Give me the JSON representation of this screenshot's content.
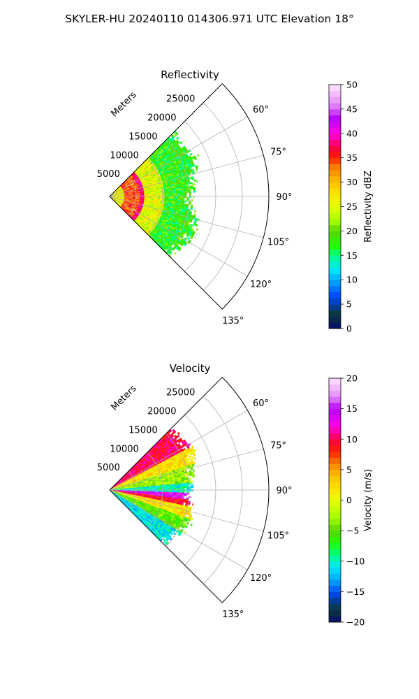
{
  "figure": {
    "suptitle": "SKYLER-HU  20240110  014306.971 UTC Elevation 18°"
  },
  "chart_data": [
    {
      "type": "heatmap",
      "projection": "polar-sector",
      "title": "Reflectivity",
      "radial_axis_label": "Meters",
      "radial_ticks": [
        5000,
        10000,
        15000,
        20000,
        25000
      ],
      "radial_tick_labels": [
        "5000",
        "10000",
        "15000",
        "20000",
        "25000"
      ],
      "rlim": [
        0,
        30000
      ],
      "azimuth_range_deg": [
        45,
        135
      ],
      "azimuth_ticks": [
        60,
        75,
        90,
        105,
        120,
        135
      ],
      "azimuth_tick_labels": [
        "60°",
        "75°",
        "90°",
        "105°",
        "120°",
        "135°"
      ],
      "grid": true,
      "colorbar": {
        "label": "Reflectivity dBZ",
        "vmin": 0,
        "vmax": 50,
        "ticks": [
          0,
          5,
          10,
          15,
          20,
          25,
          30,
          35,
          40,
          45,
          50
        ],
        "tick_labels": [
          "0",
          "5",
          "10",
          "15",
          "20",
          "25",
          "30",
          "35",
          "40",
          "45",
          "50"
        ],
        "stops": [
          {
            "v": 0,
            "c": "#0a0a6e"
          },
          {
            "v": 3,
            "c": "#0a3a3a"
          },
          {
            "v": 5,
            "c": "#003cb4"
          },
          {
            "v": 7,
            "c": "#0050ff"
          },
          {
            "v": 10,
            "c": "#00aaff"
          },
          {
            "v": 12,
            "c": "#00e6ff"
          },
          {
            "v": 15,
            "c": "#00ff88"
          },
          {
            "v": 17,
            "c": "#22ff00"
          },
          {
            "v": 20,
            "c": "#55d400"
          },
          {
            "v": 22,
            "c": "#a0ff00"
          },
          {
            "v": 25,
            "c": "#e6ff00"
          },
          {
            "v": 28,
            "c": "#ffe000"
          },
          {
            "v": 30,
            "c": "#ffbf00"
          },
          {
            "v": 33,
            "c": "#ff8000"
          },
          {
            "v": 35,
            "c": "#ff2000"
          },
          {
            "v": 37,
            "c": "#ff0040"
          },
          {
            "v": 40,
            "c": "#ff00e0"
          },
          {
            "v": 43,
            "c": "#b400ff"
          },
          {
            "v": 46,
            "c": "#e68cff"
          },
          {
            "v": 50,
            "c": "#ffe6ff"
          }
        ]
      },
      "data_region": {
        "description_values": "returns within approx. 0–19000 m range",
        "max_range_m": [
          17500,
          18500,
          17000,
          16500,
          15500,
          17500,
          18000,
          17000,
          16500
        ],
        "azimuth_samples_deg": [
          55,
          65,
          75,
          85,
          95,
          105,
          115,
          125,
          130
        ],
        "bands": [
          {
            "r_from_m": 0,
            "r_to_m": 2500,
            "dbz": 26
          },
          {
            "r_from_m": 2500,
            "r_to_m": 5500,
            "dbz": 34
          },
          {
            "r_from_m": 5500,
            "r_to_m": 6500,
            "dbz": 38
          },
          {
            "r_from_m": 6500,
            "r_to_m": 10000,
            "dbz": 25
          },
          {
            "r_from_m": 10000,
            "r_to_m": 19000,
            "dbz": 18
          }
        ]
      }
    },
    {
      "type": "heatmap",
      "projection": "polar-sector",
      "title": "Velocity",
      "radial_axis_label": "Meters",
      "radial_ticks": [
        5000,
        10000,
        15000,
        20000,
        25000
      ],
      "radial_tick_labels": [
        "5000",
        "10000",
        "15000",
        "20000",
        "25000"
      ],
      "rlim": [
        0,
        30000
      ],
      "azimuth_range_deg": [
        45,
        135
      ],
      "azimuth_ticks": [
        60,
        75,
        90,
        105,
        120,
        135
      ],
      "azimuth_tick_labels": [
        "60°",
        "75°",
        "90°",
        "105°",
        "120°",
        "135°"
      ],
      "grid": true,
      "colorbar": {
        "label": "Velocity (m/s)",
        "vmin": -20,
        "vmax": 20,
        "ticks": [
          -20,
          -15,
          -10,
          -5,
          0,
          5,
          10,
          15,
          20
        ],
        "tick_labels": [
          "−20",
          "−15",
          "−10",
          "−5",
          "0",
          "5",
          "10",
          "15",
          "20"
        ],
        "stops": [
          {
            "v": -20,
            "c": "#0a0a6e"
          },
          {
            "v": -18,
            "c": "#0a3a3a"
          },
          {
            "v": -16,
            "c": "#003cb4"
          },
          {
            "v": -15,
            "c": "#0050ff"
          },
          {
            "v": -13,
            "c": "#00aaff"
          },
          {
            "v": -11,
            "c": "#00e6ff"
          },
          {
            "v": -9,
            "c": "#00ff88"
          },
          {
            "v": -7,
            "c": "#22ff00"
          },
          {
            "v": -5,
            "c": "#55d400"
          },
          {
            "v": -3,
            "c": "#a0ff00"
          },
          {
            "v": 0,
            "c": "#e6ff00"
          },
          {
            "v": 2,
            "c": "#ffe000"
          },
          {
            "v": 4,
            "c": "#ffbf00"
          },
          {
            "v": 6,
            "c": "#ff8000"
          },
          {
            "v": 8,
            "c": "#ff2000"
          },
          {
            "v": 10,
            "c": "#ff0040"
          },
          {
            "v": 12,
            "c": "#ff00e0"
          },
          {
            "v": 15,
            "c": "#b400ff"
          },
          {
            "v": 17,
            "c": "#e68cff"
          },
          {
            "v": 20,
            "c": "#ffe6ff"
          }
        ]
      },
      "data_region": {
        "max_range_m": [
          17000,
          18000,
          16500,
          16000,
          15500,
          16500,
          17000,
          15500,
          15000
        ],
        "azimuth_samples_deg": [
          55,
          65,
          75,
          85,
          95,
          105,
          115,
          125,
          130
        ],
        "sectors": [
          {
            "az_from": 45,
            "az_to": 62,
            "vel": 10
          },
          {
            "az_from": 62,
            "az_to": 72,
            "vel": 2
          },
          {
            "az_from": 72,
            "az_to": 84,
            "vel": -3
          },
          {
            "az_from": 84,
            "az_to": 91,
            "vel": -10
          },
          {
            "az_from": 91,
            "az_to": 96,
            "vel": 14
          },
          {
            "az_from": 96,
            "az_to": 101,
            "vel": 9
          },
          {
            "az_from": 101,
            "az_to": 110,
            "vel": 2
          },
          {
            "az_from": 110,
            "az_to": 120,
            "vel": -5
          },
          {
            "az_from": 120,
            "az_to": 132,
            "vel": -11
          }
        ]
      }
    }
  ]
}
